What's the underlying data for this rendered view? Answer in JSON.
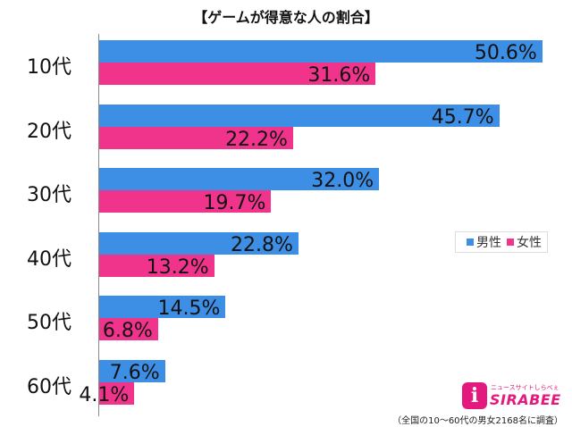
{
  "chart_data": {
    "type": "bar",
    "orientation": "horizontal",
    "title": "【ゲームが得意な人の割合】",
    "categories": [
      "10代",
      "20代",
      "30代",
      "40代",
      "50代",
      "60代"
    ],
    "series": [
      {
        "name": "男性",
        "values": [
          50.6,
          45.7,
          32.0,
          22.8,
          14.5,
          7.6
        ],
        "labels": [
          "50.6%",
          "45.7%",
          "32.0%",
          "22.8%",
          "14.5%",
          "7.6%"
        ],
        "color": "#3d8fe6"
      },
      {
        "name": "女性",
        "values": [
          31.6,
          22.2,
          19.7,
          13.2,
          6.8,
          4.1
        ],
        "labels": [
          "31.6%",
          "22.2%",
          "19.7%",
          "13.2%",
          "6.8%",
          "4.1%"
        ],
        "color": "#f0348c"
      }
    ],
    "xlim": [
      0,
      55
    ],
    "grid": false,
    "legend_position": "right"
  },
  "logo": {
    "tagline": "ニュースサイトしらべぇ",
    "brand": "SIRABEE",
    "mark": "i"
  },
  "footnote": "（全国の10〜60代の男女2168名に調査）"
}
